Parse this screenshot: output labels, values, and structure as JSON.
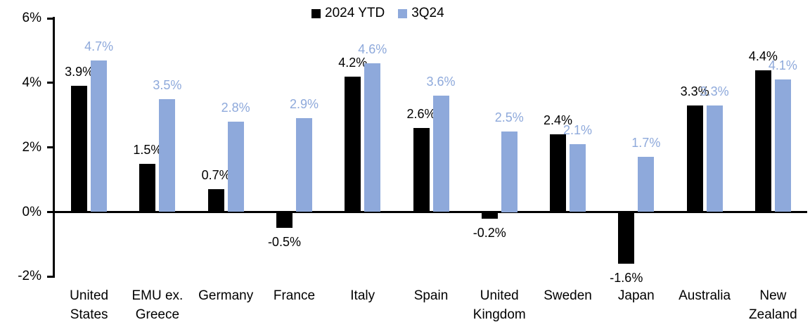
{
  "chart_data": {
    "type": "bar",
    "title": "",
    "grid": "off",
    "legend_position": "top-center",
    "y_axis": {
      "min": -2,
      "max": 6,
      "ticks": [
        {
          "label": "6%",
          "value": 6
        },
        {
          "label": "4%",
          "value": 4
        },
        {
          "label": "2%",
          "value": 2
        },
        {
          "label": "0%",
          "value": 0
        },
        {
          "label": "-2%",
          "value": -2
        }
      ]
    },
    "categories": [
      {
        "label": "United States",
        "lines": [
          "United",
          "States"
        ]
      },
      {
        "label": "EMU ex. Greece",
        "lines": [
          "EMU ex.",
          "Greece"
        ]
      },
      {
        "label": "Germany",
        "lines": [
          "Germany"
        ]
      },
      {
        "label": "France",
        "lines": [
          "France"
        ]
      },
      {
        "label": "Italy",
        "lines": [
          "Italy"
        ]
      },
      {
        "label": "Spain",
        "lines": [
          "Spain"
        ]
      },
      {
        "label": "United Kingdom",
        "lines": [
          "United",
          "Kingdom"
        ]
      },
      {
        "label": "Sweden",
        "lines": [
          "Sweden"
        ]
      },
      {
        "label": "Japan",
        "lines": [
          "Japan"
        ]
      },
      {
        "label": "Australia",
        "lines": [
          "Australia"
        ]
      },
      {
        "label": "New Zealand",
        "lines": [
          "New",
          "Zealand"
        ]
      }
    ],
    "series": [
      {
        "name": "2024 YTD",
        "color": "#000000",
        "label_color": "#000000",
        "values": [
          3.9,
          1.5,
          0.7,
          -0.5,
          4.2,
          2.6,
          -0.2,
          2.4,
          -1.6,
          3.3,
          4.4
        ],
        "labels": [
          "3.9%",
          "1.5%",
          "0.7%",
          "-0.5%",
          "4.2%",
          "2.6%",
          "-0.2%",
          "2.4%",
          "-1.6%",
          "3.3%",
          "4.4%"
        ]
      },
      {
        "name": "3Q24",
        "color": "#8EA9DB",
        "label_color": "#8EA9DB",
        "values": [
          4.7,
          3.5,
          2.8,
          2.9,
          4.6,
          3.6,
          2.5,
          2.1,
          1.7,
          3.3,
          4.1
        ],
        "labels": [
          "4.7%",
          "3.5%",
          "2.8%",
          "2.9%",
          "4.6%",
          "3.6%",
          "2.5%",
          "2.1%",
          "1.7%",
          "3.3%",
          "4.1%"
        ]
      }
    ]
  }
}
